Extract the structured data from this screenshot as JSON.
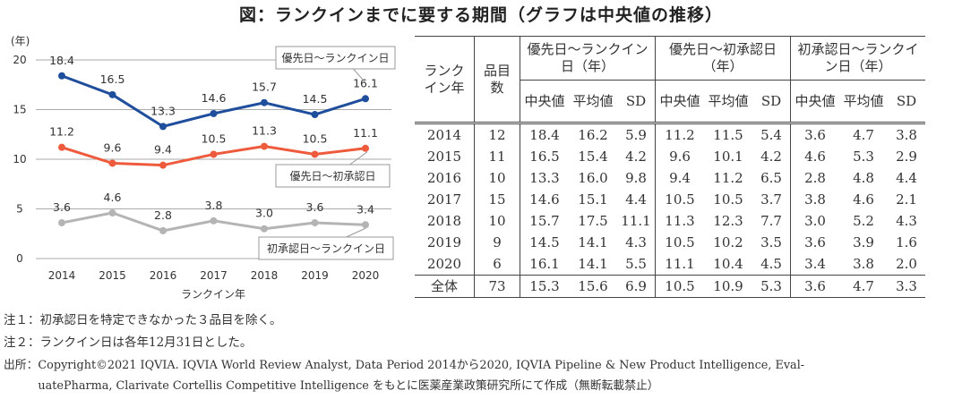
{
  "title": "図：ランクインまでに要する期間（グラフは中央値の推移）",
  "chart_data": {
    "type": "line",
    "ylabel": "(年)",
    "xlabel": "ランクイン年",
    "categories": [
      "2014",
      "2015",
      "2016",
      "2017",
      "2018",
      "2019",
      "2020"
    ],
    "ylim": [
      0,
      20
    ],
    "yticks": [
      0,
      5,
      10,
      15,
      20
    ],
    "grid": true,
    "series": [
      {
        "name": "優先日～ランクイン日",
        "color": "#1f4e9c",
        "values": [
          18.4,
          16.5,
          13.3,
          14.6,
          15.7,
          14.5,
          16.1
        ]
      },
      {
        "name": "優先日～初承認日",
        "color": "#ee5a3c",
        "values": [
          11.2,
          9.6,
          9.4,
          10.5,
          11.3,
          10.5,
          11.1
        ]
      },
      {
        "name": "初承認日～ランクイン日",
        "color": "#b4b4b4",
        "values": [
          3.6,
          4.6,
          2.8,
          3.8,
          3.0,
          3.6,
          3.4
        ]
      }
    ]
  },
  "table": {
    "head": {
      "year": "ランクイン年",
      "count": "品目数",
      "groups": [
        "優先日～ランクイン日（年）",
        "優先日～初承認日（年）",
        "初承認日～ランクイン日（年）"
      ],
      "median": "中央値",
      "mean": "平均値",
      "sd": "SD"
    },
    "rows": [
      [
        "2014",
        "12",
        "18.4",
        "16.2",
        "5.9",
        "11.2",
        "11.5",
        "5.4",
        "3.6",
        "4.7",
        "3.8"
      ],
      [
        "2015",
        "11",
        "16.5",
        "15.4",
        "4.2",
        "9.6",
        "10.1",
        "4.2",
        "4.6",
        "5.3",
        "2.9"
      ],
      [
        "2016",
        "10",
        "13.3",
        "16.0",
        "9.8",
        "9.4",
        "11.2",
        "6.5",
        "2.8",
        "4.8",
        "4.4"
      ],
      [
        "2017",
        "15",
        "14.6",
        "15.1",
        "4.4",
        "10.5",
        "10.5",
        "3.7",
        "3.8",
        "4.6",
        "2.1"
      ],
      [
        "2018",
        "10",
        "15.7",
        "17.5",
        "11.1",
        "11.3",
        "12.3",
        "7.7",
        "3.0",
        "5.2",
        "4.3"
      ],
      [
        "2019",
        "9",
        "14.5",
        "14.1",
        "4.3",
        "10.5",
        "10.2",
        "3.5",
        "3.6",
        "3.9",
        "1.6"
      ],
      [
        "2020",
        "6",
        "16.1",
        "14.1",
        "5.5",
        "11.1",
        "10.4",
        "4.5",
        "3.4",
        "3.8",
        "2.0"
      ],
      [
        "全体",
        "73",
        "15.3",
        "15.6",
        "6.9",
        "10.5",
        "10.9",
        "5.3",
        "3.6",
        "4.7",
        "3.3"
      ]
    ]
  },
  "notes": [
    "注１：初承認日を特定できなかった３品目を除く。",
    "注２：ランクイン日は各年12月31日とした。",
    "出所：Copyright©2021 IQVIA. IQVIA World Review Analyst, Data Period 2014から2020, IQVIA Pipeline & New Product Intelligence, Eval-",
    "　　　uatePharma, Clarivate Cortellis Competitive Intelligence をもとに医薬産業政策研究所にて作成（無断転載禁止）"
  ]
}
